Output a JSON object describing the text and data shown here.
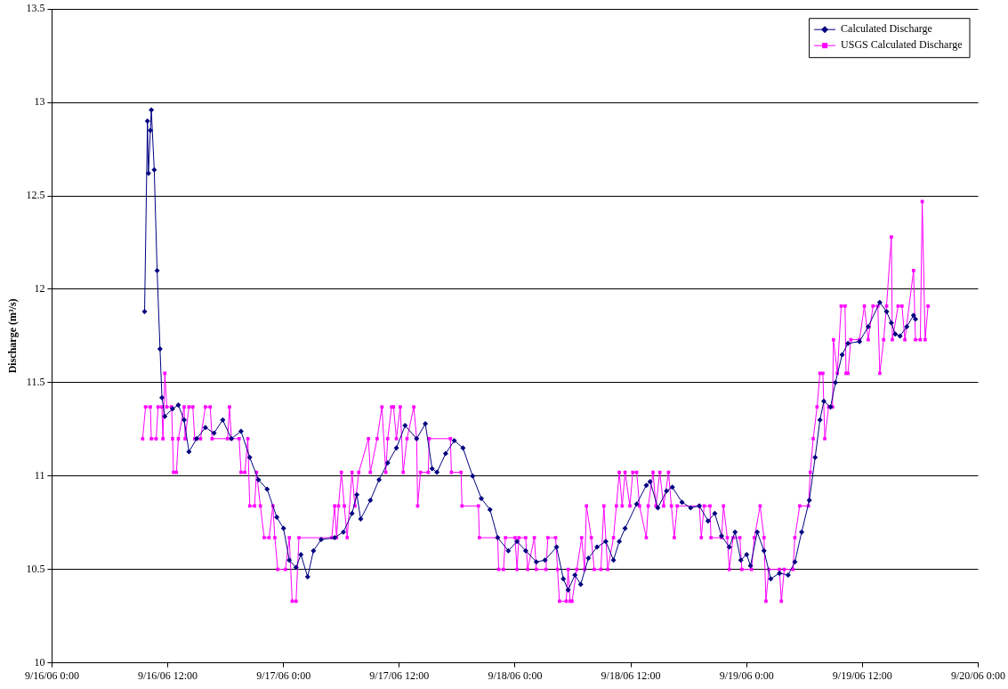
{
  "chart_data": {
    "type": "line",
    "ylabel": "Discharge (m³/s)",
    "xlim": [
      "--09-16T00:00",
      "--09-20T00:00"
    ],
    "xticks": [
      {
        "value": "--09-16T00:00",
        "label": "9/16/06 0:00"
      },
      {
        "value": "--09-16T12:00",
        "label": "9/16/06 12:00"
      },
      {
        "value": "--09-17T00:00",
        "label": "9/17/06 0:00"
      },
      {
        "value": "--09-17T12:00",
        "label": "9/17/06 12:00"
      },
      {
        "value": "--09-18T00:00",
        "label": "9/18/06 0:00"
      },
      {
        "value": "--09-18T12:00",
        "label": "9/18/06 12:00"
      },
      {
        "value": "--09-19T00:00",
        "label": "9/19/06 0:00"
      },
      {
        "value": "--09-19T12:00",
        "label": "9/19/06 12:00"
      },
      {
        "value": "--09-20T00:00",
        "label": "9/20/06 0:00"
      }
    ],
    "ylim": [
      10,
      13.5
    ],
    "yticks": [
      10,
      10.5,
      11,
      11.5,
      12,
      12.5,
      13,
      13.5
    ],
    "grid": "y",
    "legend": "top right",
    "line_style": "solid",
    "series": [
      {
        "name": "Calculated Discharge",
        "color": "#000080",
        "marker": "diamond",
        "x": [
          "--09-16T09:36",
          "--09-16T09:54",
          "--09-16T10:00",
          "--09-16T10:12",
          "--09-16T10:18",
          "--09-16T10:36",
          "--09-16T10:54",
          "--09-16T11:12",
          "--09-16T11:24",
          "--09-16T11:42",
          "--09-16T12:30",
          "--09-16T13:06",
          "--09-16T13:42",
          "--09-16T14:12",
          "--09-16T15:00",
          "--09-16T15:54",
          "--09-16T16:48",
          "--09-16T17:42",
          "--09-16T18:36",
          "--09-16T19:36",
          "--09-16T20:30",
          "--09-16T21:24",
          "--09-16T22:18",
          "--09-16T23:18",
          "--09-17T00:00",
          "--09-17T00:36",
          "--09-17T01:18",
          "--09-17T01:48",
          "--09-17T02:30",
          "--09-17T03:06",
          "--09-17T03:54",
          "--09-17T05:18",
          "--09-17T06:12",
          "--09-17T07:06",
          "--09-17T07:36",
          "--09-17T08:00",
          "--09-17T09:00",
          "--09-17T09:54",
          "--09-17T10:48",
          "--09-17T11:42",
          "--09-17T12:36",
          "--09-17T13:48",
          "--09-17T14:42",
          "--09-17T15:24",
          "--09-17T15:54",
          "--09-17T16:48",
          "--09-17T17:42",
          "--09-17T18:36",
          "--09-17T19:36",
          "--09-17T20:30",
          "--09-17T21:24",
          "--09-17T22:12",
          "--09-17T23:18",
          "--09-18T00:12",
          "--09-18T01:06",
          "--09-18T02:12",
          "--09-18T03:06",
          "--09-18T04:18",
          "--09-18T05:00",
          "--09-18T05:30",
          "--09-18T06:12",
          "--09-18T06:48",
          "--09-18T07:36",
          "--09-18T08:30",
          "--09-18T09:24",
          "--09-18T10:12",
          "--09-18T10:48",
          "--09-18T11:24",
          "--09-18T12:36",
          "--09-18T13:36",
          "--09-18T14:00",
          "--09-18T14:48",
          "--09-18T15:42",
          "--09-18T16:18",
          "--09-18T17:18",
          "--09-18T18:12",
          "--09-18T19:06",
          "--09-18T20:00",
          "--09-18T20:42",
          "--09-18T21:24",
          "--09-18T22:12",
          "--09-18T22:48",
          "--09-18T23:24",
          "--09-19T00:00",
          "--09-19T00:24",
          "--09-19T01:06",
          "--09-19T01:48",
          "--09-19T02:30",
          "--09-19T03:24",
          "--09-19T04:18",
          "--09-19T05:00",
          "--09-19T05:42",
          "--09-19T06:30",
          "--09-19T07:06",
          "--09-19T07:36",
          "--09-19T08:00",
          "--09-19T08:42",
          "--09-19T09:12",
          "--09-19T09:54",
          "--09-19T10:30",
          "--09-19T11:42",
          "--09-19T12:36",
          "--09-19T13:48",
          "--09-19T14:30",
          "--09-19T15:00",
          "--09-19T15:24",
          "--09-19T15:54",
          "--09-19T16:36",
          "--09-19T17:18",
          "--09-19T17:30"
        ],
        "values": [
          11.88,
          12.9,
          12.62,
          12.85,
          12.96,
          12.64,
          12.1,
          11.68,
          11.42,
          11.32,
          11.36,
          11.38,
          11.3,
          11.13,
          11.2,
          11.26,
          11.23,
          11.3,
          11.2,
          11.24,
          11.1,
          10.98,
          10.93,
          10.78,
          10.72,
          10.55,
          10.51,
          10.58,
          10.46,
          10.6,
          10.66,
          10.67,
          10.7,
          10.8,
          10.9,
          10.77,
          10.87,
          10.98,
          11.07,
          11.15,
          11.27,
          11.2,
          11.28,
          11.04,
          11.02,
          11.12,
          11.19,
          11.15,
          11.0,
          10.88,
          10.82,
          10.67,
          10.6,
          10.65,
          10.6,
          10.54,
          10.55,
          10.62,
          10.45,
          10.39,
          10.47,
          10.42,
          10.56,
          10.62,
          10.65,
          10.55,
          10.65,
          10.72,
          10.85,
          10.95,
          10.97,
          10.83,
          10.92,
          10.94,
          10.86,
          10.83,
          10.84,
          10.76,
          10.8,
          10.68,
          10.62,
          10.7,
          10.55,
          10.58,
          10.52,
          10.7,
          10.6,
          10.45,
          10.48,
          10.47,
          10.54,
          10.7,
          10.87,
          11.1,
          11.3,
          11.4,
          11.37,
          11.5,
          11.65,
          11.71,
          11.72,
          11.8,
          11.93,
          11.88,
          11.82,
          11.76,
          11.75,
          11.8,
          11.86,
          11.84
        ]
      },
      {
        "name": "USGS Calculated Discharge",
        "color": "#ff00ff",
        "marker": "square",
        "x": [
          "--09-16T09:24",
          "--09-16T09:42",
          "--09-16T10:12",
          "--09-16T10:18",
          "--09-16T10:48",
          "--09-16T11:00",
          "--09-16T11:24",
          "--09-16T11:30",
          "--09-16T11:42",
          "--09-16T11:54",
          "--09-16T12:24",
          "--09-16T12:30",
          "--09-16T12:36",
          "--09-16T12:54",
          "--09-16T13:06",
          "--09-16T13:42",
          "--09-16T13:48",
          "--09-16T14:12",
          "--09-16T14:36",
          "--09-16T14:48",
          "--09-16T15:24",
          "--09-16T15:54",
          "--09-16T16:24",
          "--09-16T16:36",
          "--09-16T18:12",
          "--09-16T18:24",
          "--09-16T18:36",
          "--09-16T19:24",
          "--09-16T19:36",
          "--09-16T20:00",
          "--09-16T20:18",
          "--09-16T20:30",
          "--09-16T21:00",
          "--09-16T21:12",
          "--09-16T21:36",
          "--09-16T22:00",
          "--09-16T22:30",
          "--09-16T22:54",
          "--09-16T23:06",
          "--09-16T23:24",
          "--09-17T00:12",
          "--09-17T00:36",
          "--09-17T00:54",
          "--09-17T01:18",
          "--09-17T01:36",
          "--09-17T05:00",
          "--09-17T05:18",
          "--09-17T05:30",
          "--09-17T05:42",
          "--09-17T06:00",
          "--09-17T06:18",
          "--09-17T06:36",
          "--09-17T07:06",
          "--09-17T07:24",
          "--09-17T07:48",
          "--09-17T08:48",
          "--09-17T09:00",
          "--09-17T09:42",
          "--09-17T10:12",
          "--09-17T10:36",
          "--09-17T10:48",
          "--09-17T11:12",
          "--09-17T11:24",
          "--09-17T11:42",
          "--09-17T12:06",
          "--09-17T12:24",
          "--09-17T12:48",
          "--09-17T13:30",
          "--09-17T13:48",
          "--09-17T13:54",
          "--09-17T14:12",
          "--09-17T15:00",
          "--09-17T15:06",
          "--09-17T17:18",
          "--09-17T17:24",
          "--09-17T18:24",
          "--09-17T18:30",
          "--09-17T20:12",
          "--09-17T20:18",
          "--09-17T22:12",
          "--09-17T22:18",
          "--09-17T22:48",
          "--09-17T23:00",
          "--09-18T00:00",
          "--09-18T00:12",
          "--09-18T00:24",
          "--09-18T01:06",
          "--09-18T01:18",
          "--09-18T02:00",
          "--09-18T02:12",
          "--09-18T03:12",
          "--09-18T03:24",
          "--09-18T04:12",
          "--09-18T04:24",
          "--09-18T04:36",
          "--09-18T05:18",
          "--09-18T05:30",
          "--09-18T05:42",
          "--09-18T05:54",
          "--09-18T06:24",
          "--09-18T06:54",
          "--09-18T07:12",
          "--09-18T07:24",
          "--09-18T07:54",
          "--09-18T08:12",
          "--09-18T08:54",
          "--09-18T09:12",
          "--09-18T09:36",
          "--09-18T10:12",
          "--09-18T10:30",
          "--09-18T10:48",
          "--09-18T11:06",
          "--09-18T11:24",
          "--09-18T11:54",
          "--09-18T12:12",
          "--09-18T12:36",
          "--09-18T12:54",
          "--09-18T13:36",
          "--09-18T13:48",
          "--09-18T14:18",
          "--09-18T14:36",
          "--09-18T15:00",
          "--09-18T15:24",
          "--09-18T15:54",
          "--09-18T16:12",
          "--09-18T16:30",
          "--09-18T16:48",
          "--09-18T19:06",
          "--09-18T19:18",
          "--09-18T19:36",
          "--09-18T20:12",
          "--09-18T20:18",
          "--09-18T21:24",
          "--09-18T21:36",
          "--09-18T22:00",
          "--09-18T22:12",
          "--09-18T22:36",
          "--09-18T23:18",
          "--09-18T23:30",
          "--09-19T00:30",
          "--09-19T00:48",
          "--09-19T01:24",
          "--09-19T01:48",
          "--09-19T02:00",
          "--09-19T02:18",
          "--09-19T03:24",
          "--09-19T03:36",
          "--09-19T03:54",
          "--09-19T04:48",
          "--09-19T05:00",
          "--09-19T05:30",
          "--09-19T06:24",
          "--09-19T06:36",
          "--09-19T06:54",
          "--09-19T07:18",
          "--09-19T07:36",
          "--09-19T07:54",
          "--09-19T08:06",
          "--09-19T08:30",
          "--09-19T08:54",
          "--09-19T09:00",
          "--09-19T09:24",
          "--09-19T09:48",
          "--09-19T10:12",
          "--09-19T10:18",
          "--09-19T10:30",
          "--09-19T10:48",
          "--09-19T11:42",
          "--09-19T12:12",
          "--09-19T12:36",
          "--09-19T13:06",
          "--09-19T13:36",
          "--09-19T13:48",
          "--09-19T14:12",
          "--09-19T14:30",
          "--09-19T15:00",
          "--09-19T15:06",
          "--09-19T15:42",
          "--09-19T16:06",
          "--09-19T16:24",
          "--09-19T17:18",
          "--09-19T17:30",
          "--09-19T18:00",
          "--09-19T18:12",
          "--09-19T18:30",
          "--09-19T18:48"
        ],
        "values": [
          11.2,
          11.37,
          11.37,
          11.2,
          11.2,
          11.37,
          11.37,
          11.2,
          11.55,
          11.37,
          11.37,
          11.2,
          11.02,
          11.02,
          11.2,
          11.37,
          11.2,
          11.37,
          11.37,
          11.2,
          11.2,
          11.37,
          11.37,
          11.2,
          11.2,
          11.37,
          11.2,
          11.2,
          11.02,
          11.02,
          11.2,
          10.84,
          10.84,
          11.02,
          10.84,
          10.67,
          10.67,
          10.84,
          10.67,
          10.5,
          10.5,
          10.67,
          10.33,
          10.33,
          10.67,
          10.67,
          10.84,
          10.67,
          10.84,
          11.02,
          10.84,
          10.67,
          11.02,
          10.84,
          11.02,
          11.2,
          11.02,
          11.2,
          11.37,
          11.02,
          11.2,
          11.37,
          11.37,
          11.2,
          11.37,
          11.02,
          11.2,
          11.37,
          11.2,
          10.84,
          11.02,
          11.02,
          11.2,
          11.2,
          11.02,
          11.02,
          10.84,
          10.84,
          10.67,
          10.67,
          10.5,
          10.5,
          10.67,
          10.67,
          10.5,
          10.67,
          10.67,
          10.5,
          10.67,
          10.5,
          10.5,
          10.67,
          10.67,
          10.5,
          10.33,
          10.33,
          10.5,
          10.33,
          10.33,
          10.5,
          10.67,
          10.5,
          10.84,
          10.67,
          10.5,
          10.5,
          10.84,
          10.5,
          10.67,
          10.84,
          11.02,
          10.84,
          11.02,
          10.84,
          11.02,
          11.02,
          10.84,
          10.67,
          10.84,
          11.02,
          10.84,
          11.02,
          10.84,
          11.02,
          10.84,
          10.67,
          10.84,
          10.84,
          10.67,
          10.84,
          10.84,
          10.67,
          10.67,
          10.84,
          10.67,
          10.5,
          10.67,
          10.67,
          10.5,
          10.5,
          10.67,
          10.84,
          10.67,
          10.33,
          10.5,
          10.5,
          10.33,
          10.5,
          10.5,
          10.67,
          10.84,
          10.84,
          11.02,
          11.2,
          11.37,
          11.55,
          11.55,
          11.2,
          11.37,
          11.37,
          11.73,
          11.55,
          11.91,
          11.91,
          11.55,
          11.55,
          11.73,
          11.73,
          11.91,
          11.73,
          11.91,
          11.91,
          11.55,
          11.73,
          11.91,
          12.28,
          11.73,
          11.91,
          11.91,
          11.73,
          12.1,
          11.73,
          11.73,
          12.47,
          11.73,
          11.91
        ]
      }
    ]
  }
}
